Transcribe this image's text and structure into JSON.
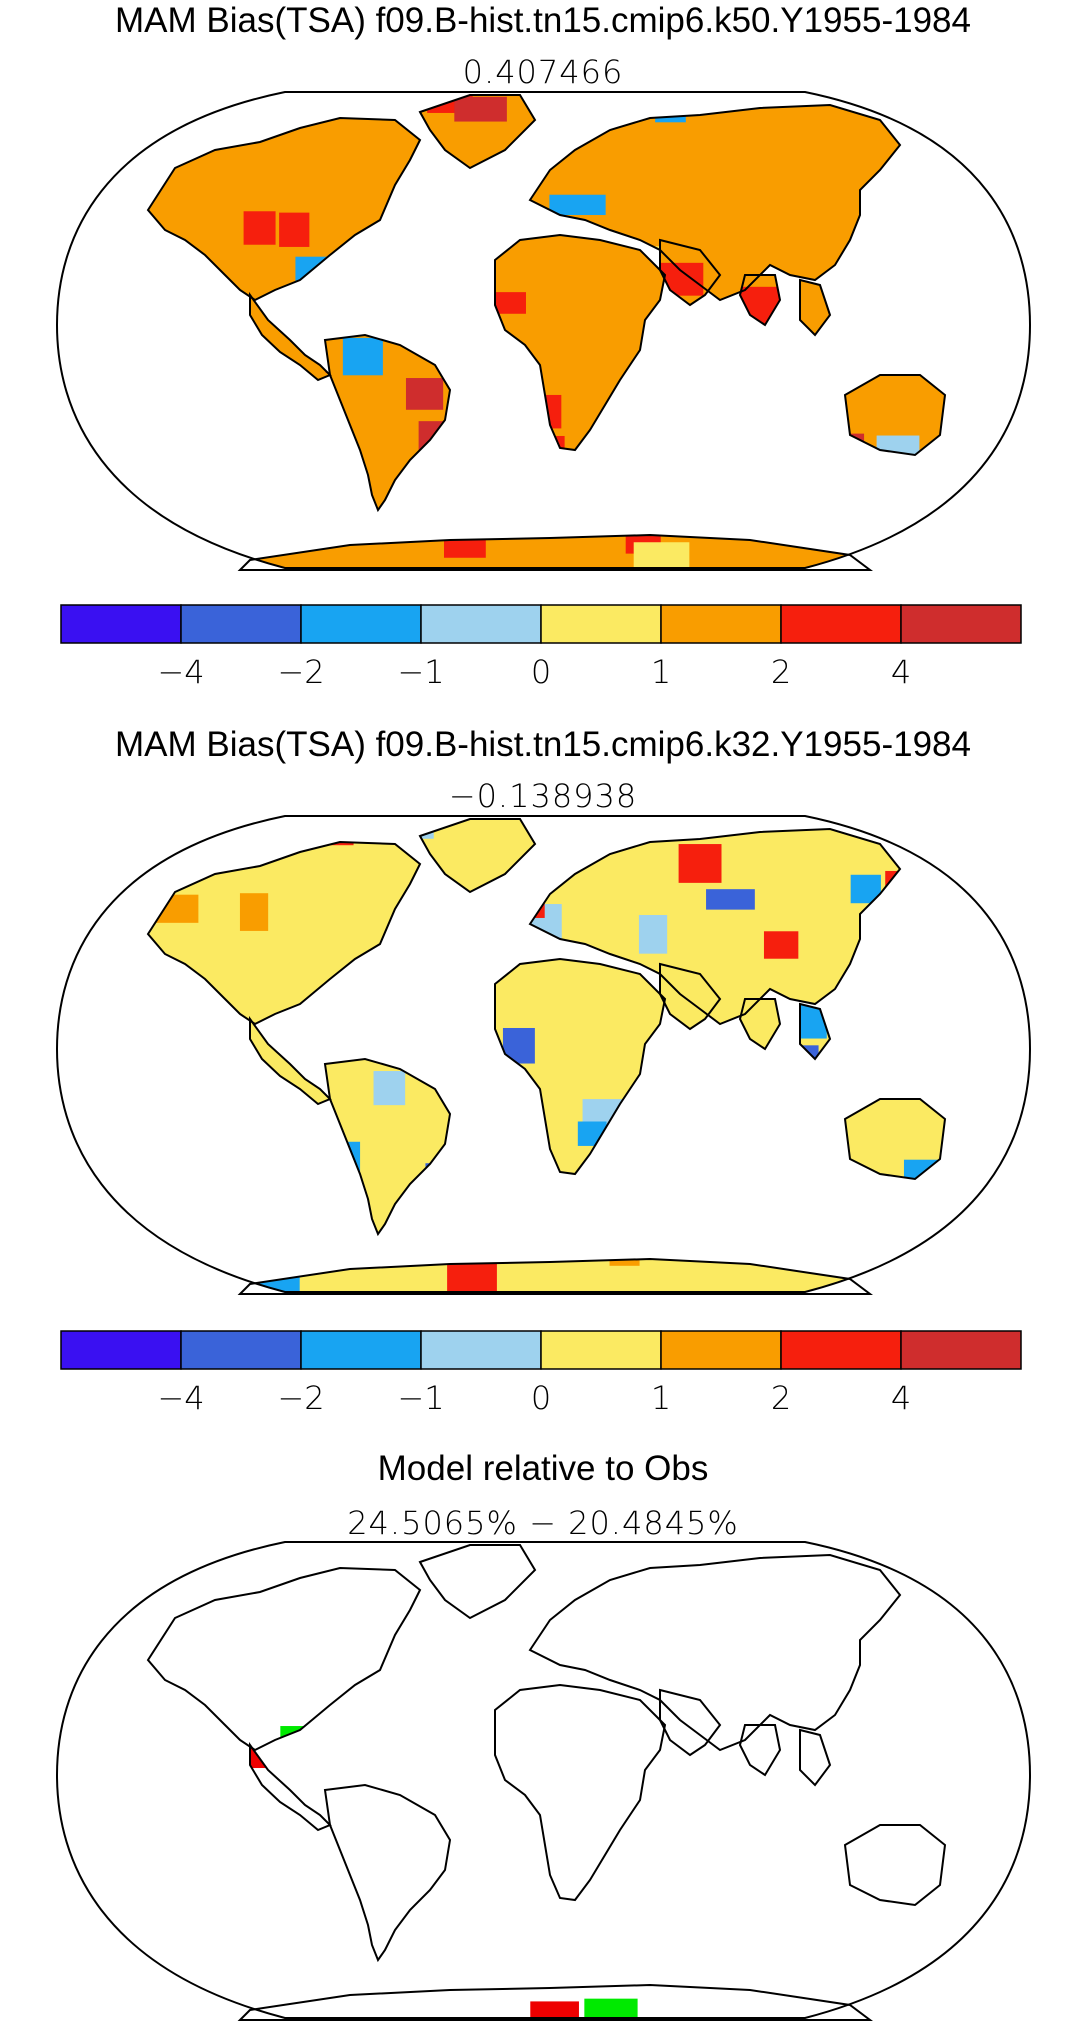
{
  "panels": [
    {
      "title": "MAM Bias(TSA) f09.B-hist.tn15.cmip6.k50.Y1955-1984",
      "subtitle": "0.407466",
      "type": "bias",
      "style": "warm"
    },
    {
      "title": "MAM Bias(TSA) f09.B-hist.tn15.cmip6.k32.Y1955-1984",
      "subtitle": "−0.138938",
      "type": "bias",
      "style": "cool"
    },
    {
      "title": "Model relative to Obs",
      "subtitle": "24.5065% − 20.4845%",
      "type": "relative"
    }
  ],
  "colorbar": {
    "colors": [
      "#3a10f2",
      "#3a63d9",
      "#18a4f2",
      "#9ed2ee",
      "#fbea62",
      "#f99d00",
      "#f61f0d",
      "#cf2d2d"
    ],
    "ticks": [
      "−4",
      "−2",
      "−1",
      "0",
      "1",
      "2",
      "4"
    ]
  },
  "relative_colors": {
    "better": "#00ea00",
    "worse": "#ee0000"
  }
}
